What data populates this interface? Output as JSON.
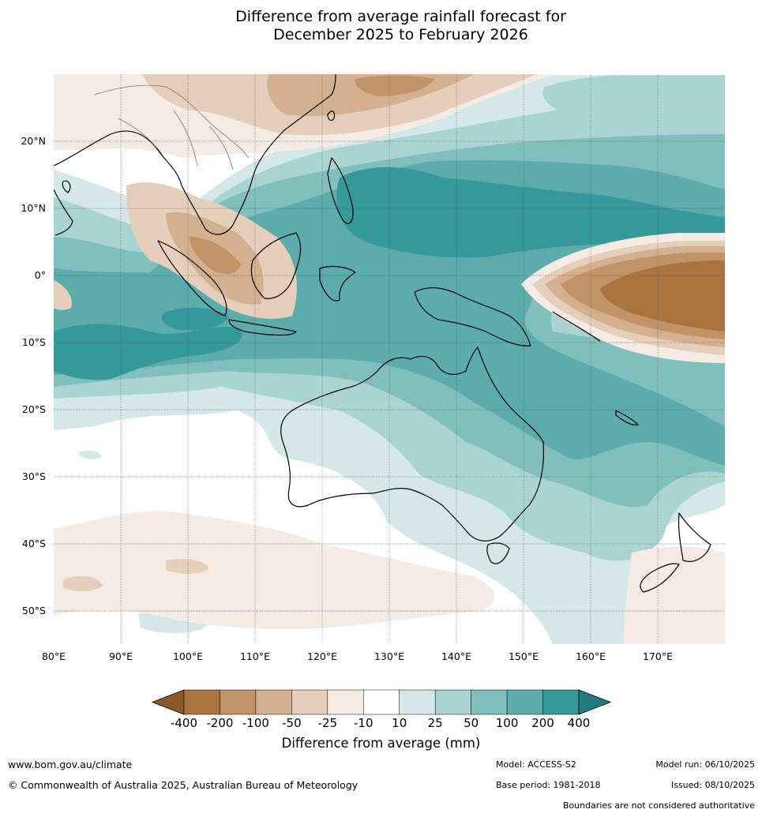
{
  "title": {
    "line1": "Difference from average rainfall forecast for",
    "line2": "December 2025 to February 2026"
  },
  "map": {
    "lon_range": [
      80,
      180
    ],
    "lat_range": [
      -55,
      30
    ],
    "lat_ticks": [
      "20°N",
      "10°N",
      "0°",
      "10°S",
      "20°S",
      "30°S",
      "40°S",
      "50°S"
    ],
    "lon_ticks": [
      "80°E",
      "90°E",
      "100°E",
      "110°E",
      "120°E",
      "130°E",
      "140°E",
      "150°E",
      "160°E",
      "170°E"
    ]
  },
  "legend": {
    "title": "Difference from average (mm)",
    "labels": [
      "-400",
      "-200",
      "-100",
      "-50",
      "-25",
      "-10",
      "10",
      "25",
      "50",
      "100",
      "200",
      "400"
    ],
    "colors": [
      "#8b5a2b",
      "#aa7440",
      "#c29366",
      "#d3b08e",
      "#e5cfbb",
      "#f4ebe4",
      "#ffffff",
      "#d3e8e7",
      "#a9d4d2",
      "#80bfbe",
      "#5bacab",
      "#35999a",
      "#1f7b7c"
    ]
  },
  "footer": {
    "website": "www.bom.gov.au/climate",
    "copyright": "© Commonwealth of Australia 2025, Australian Bureau of Meteorology",
    "model": "Model: ACCESS-S2",
    "base_period": "Base period: 1981-2018",
    "model_run": "Model run: 06/10/2025",
    "issued": "Issued: 08/10/2025",
    "disclaimer": "Boundaries are not considered authoritative"
  }
}
